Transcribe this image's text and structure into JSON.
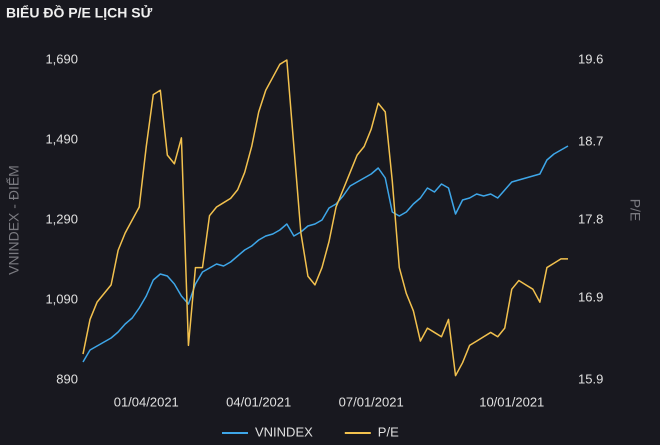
{
  "chart_data": {
    "type": "line",
    "title": "BIỂU ĐỒ P/E LỊCH SỬ",
    "y_label": "VNINDEX - ĐIỂM",
    "y2_label": "P/E",
    "categories": [
      null,
      null,
      null,
      null,
      null,
      null,
      null,
      null,
      null,
      "01/04/2021",
      null,
      null,
      null,
      null,
      null,
      null,
      null,
      null,
      null,
      null,
      null,
      null,
      null,
      null,
      null,
      "04/01/2021",
      null,
      null,
      null,
      null,
      null,
      null,
      null,
      null,
      null,
      null,
      null,
      null,
      null,
      null,
      null,
      "07/01/2021",
      null,
      null,
      null,
      null,
      null,
      null,
      null,
      null,
      null,
      null,
      null,
      null,
      null,
      null,
      null,
      null,
      null,
      null,
      null,
      "10/01/2021",
      null,
      null,
      null,
      null,
      null,
      null,
      null,
      null
    ],
    "series": [
      {
        "name": "VNINDEX",
        "color": "#3ea6e8",
        "axis": "y",
        "values": [
          935,
          965,
          975,
          985,
          995,
          1010,
          1030,
          1045,
          1070,
          1100,
          1140,
          1155,
          1150,
          1130,
          1100,
          1080,
          1130,
          1160,
          1170,
          1180,
          1175,
          1185,
          1200,
          1215,
          1225,
          1240,
          1250,
          1255,
          1265,
          1280,
          1250,
          1260,
          1275,
          1280,
          1290,
          1320,
          1330,
          1350,
          1375,
          1385,
          1395,
          1405,
          1420,
          1395,
          1310,
          1300,
          1310,
          1330,
          1345,
          1370,
          1360,
          1380,
          1370,
          1305,
          1340,
          1345,
          1355,
          1350,
          1355,
          1345,
          1365,
          1385,
          1390,
          1395,
          1400,
          1405,
          1440,
          1455,
          1465,
          1475
        ]
      },
      {
        "name": "P/E",
        "color": "#f2c14e",
        "axis": "y2",
        "values": [
          16.2,
          16.6,
          16.8,
          16.9,
          17.0,
          17.4,
          17.6,
          17.75,
          17.9,
          18.6,
          19.2,
          19.25,
          18.5,
          18.4,
          18.7,
          16.3,
          17.2,
          17.2,
          17.8,
          17.9,
          17.95,
          18.0,
          18.1,
          18.3,
          18.6,
          19.0,
          19.25,
          19.4,
          19.55,
          19.6,
          18.6,
          17.6,
          17.1,
          17.0,
          17.2,
          17.5,
          17.9,
          18.1,
          18.3,
          18.5,
          18.6,
          18.8,
          19.1,
          19.0,
          18.2,
          17.2,
          16.9,
          16.7,
          16.35,
          16.5,
          16.45,
          16.4,
          16.6,
          15.95,
          16.1,
          16.3,
          16.35,
          16.4,
          16.45,
          16.4,
          16.5,
          16.95,
          17.05,
          17.0,
          16.95,
          16.8,
          17.2,
          17.25,
          17.3,
          17.3
        ]
      }
    ],
    "ylim": [
      890,
      1690
    ],
    "yticks": [
      890,
      {
        "value": 1090,
        "label": "1,090"
      },
      {
        "value": 1290,
        "label": "1,290"
      },
      {
        "value": 1490,
        "label": "1,490"
      },
      {
        "value": 1690,
        "label": "1,690"
      }
    ],
    "y2lim": [
      15.9,
      19.6
    ],
    "y2ticks": [
      15.9,
      {
        "value": 16.85,
        "label": "16.9"
      },
      {
        "value": 17.75,
        "label": "17.8"
      },
      {
        "value": 18.65,
        "label": "18.7"
      },
      19.6
    ],
    "grid": false,
    "legend": "bottom"
  }
}
